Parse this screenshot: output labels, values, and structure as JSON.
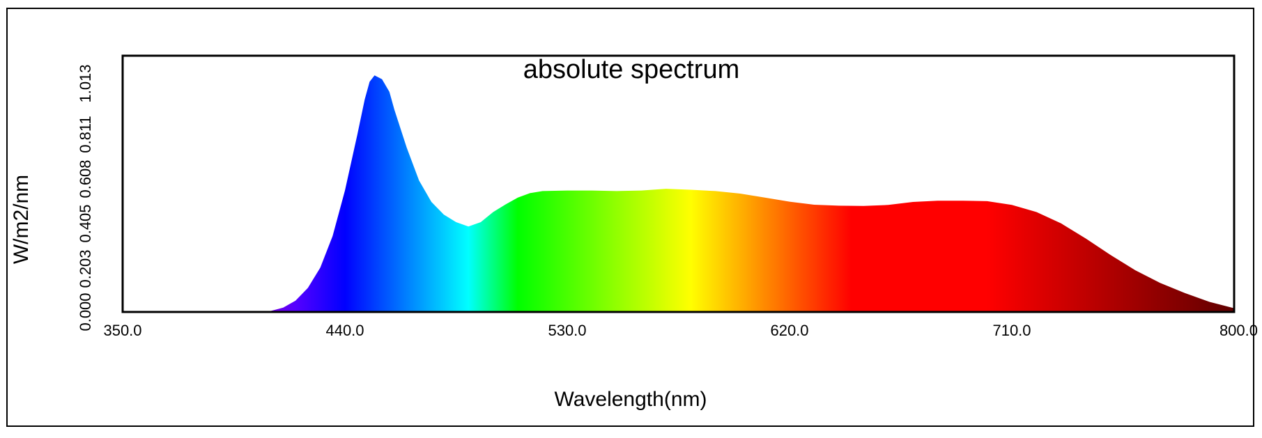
{
  "chart_data": {
    "type": "area",
    "title": "absolute spectrum",
    "xlabel": "Wavelength(nm)",
    "ylabel": "W/m2/nm",
    "xlim": [
      350.0,
      800.0
    ],
    "ylim": [
      0.0,
      1.013
    ],
    "xticks": [
      "350.0",
      "440.0",
      "530.0",
      "620.0",
      "710.0",
      "800.0"
    ],
    "yticks": [
      "0.000",
      "0.203",
      "0.405",
      "0.608",
      "0.811",
      "1.013"
    ],
    "grid": false,
    "legend": "none",
    "fill": "visible-spectrum-gradient",
    "series": [
      {
        "x": [
          350,
          380,
          400,
          410,
          415,
          420,
          425,
          430,
          435,
          440,
          445,
          448,
          450,
          452,
          455,
          458,
          460,
          465,
          470,
          475,
          480,
          485,
          490,
          495,
          500,
          505,
          510,
          515,
          520,
          530,
          540,
          550,
          560,
          570,
          580,
          590,
          600,
          610,
          620,
          630,
          640,
          650,
          660,
          670,
          680,
          690,
          700,
          710,
          720,
          730,
          740,
          750,
          760,
          770,
          780,
          790,
          800
        ],
        "y": [
          0.0,
          0.0,
          0.001,
          0.004,
          0.017,
          0.045,
          0.095,
          0.175,
          0.3,
          0.48,
          0.7,
          0.84,
          0.91,
          0.935,
          0.92,
          0.87,
          0.8,
          0.65,
          0.52,
          0.435,
          0.385,
          0.355,
          0.338,
          0.355,
          0.395,
          0.425,
          0.452,
          0.47,
          0.478,
          0.48,
          0.48,
          0.478,
          0.48,
          0.487,
          0.483,
          0.478,
          0.468,
          0.452,
          0.436,
          0.424,
          0.42,
          0.419,
          0.423,
          0.435,
          0.44,
          0.44,
          0.438,
          0.423,
          0.395,
          0.35,
          0.29,
          0.225,
          0.165,
          0.115,
          0.075,
          0.04,
          0.015
        ]
      }
    ]
  },
  "colors": {
    "frame": "#000000",
    "background": "#ffffff"
  }
}
